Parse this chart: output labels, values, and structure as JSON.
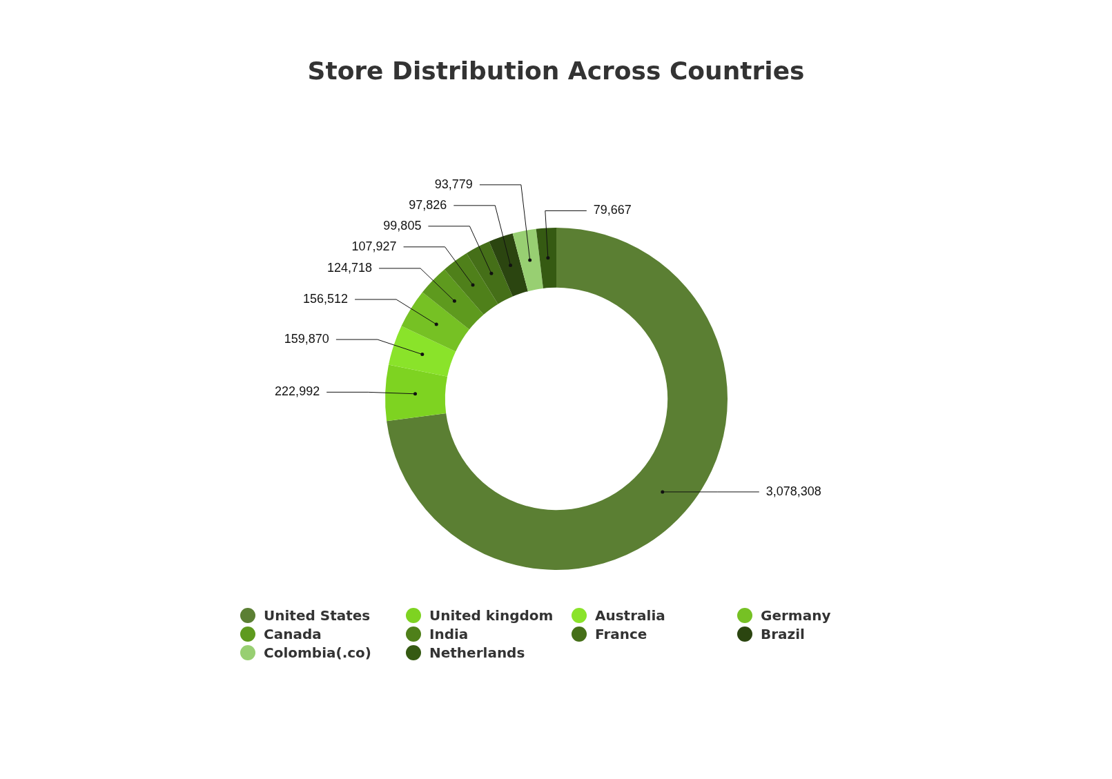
{
  "chart_data": {
    "type": "donut",
    "title": "Store Distribution Across Countries",
    "categories": [
      "United States",
      "United kingdom",
      "Australia",
      "Germany",
      "Canada",
      "India",
      "France",
      "Brazil",
      "Colombia(.co)",
      "Netherlands"
    ],
    "values": [
      3078308,
      222992,
      159870,
      156512,
      124718,
      107927,
      99805,
      97826,
      93779,
      79667
    ],
    "colors": [
      "#5b7f33",
      "#7ed321",
      "#8ae32a",
      "#76c124",
      "#5e9a1e",
      "#4f801a",
      "#456f18",
      "#2b4510",
      "#98cf72",
      "#355a12"
    ],
    "value_labels": [
      "3,078,308",
      "222,992",
      "159,870",
      "156,512",
      "124,718",
      "107,927",
      "99,805",
      "97,826",
      "93,779",
      "79,667"
    ],
    "legend": "bottom"
  }
}
